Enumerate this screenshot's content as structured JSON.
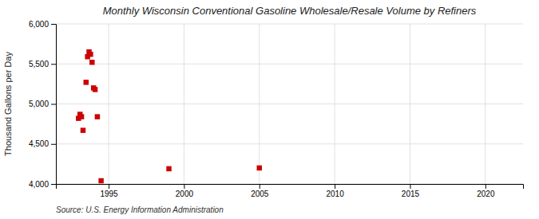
{
  "chart_data": {
    "type": "scatter",
    "title": "Monthly Wisconsin Conventional Gasoline Wholesale/Resale Volume by Refiners",
    "ylabel": "Thousand Gallons per Day",
    "annotations": [
      "Source: U.S. Energy Information Administration"
    ],
    "x": [
      1993.0,
      1993.1,
      1993.2,
      1993.3,
      1993.5,
      1993.6,
      1993.7,
      1993.8,
      1993.9,
      1994.0,
      1994.1,
      1994.25,
      1994.5,
      1999.0,
      2005.0
    ],
    "values": [
      4820,
      4870,
      4840,
      4670,
      5270,
      5590,
      5650,
      5620,
      5520,
      5200,
      5180,
      4840,
      4040,
      4190,
      4200
    ],
    "color": "#cc0000",
    "marker": "square",
    "xlim": [
      1991.5,
      2022.5
    ],
    "xticks": [
      1995,
      2000,
      2005,
      2010,
      2015,
      2020
    ],
    "ylim": [
      4000,
      6000
    ],
    "yticks": [
      {
        "value": 4000,
        "label": "4,000"
      },
      {
        "value": 4500,
        "label": "4,500"
      },
      {
        "value": 5000,
        "label": "5,000"
      },
      {
        "value": 5500,
        "label": "5,500"
      },
      {
        "value": 6000,
        "label": "6,000"
      }
    ],
    "grid": true
  }
}
